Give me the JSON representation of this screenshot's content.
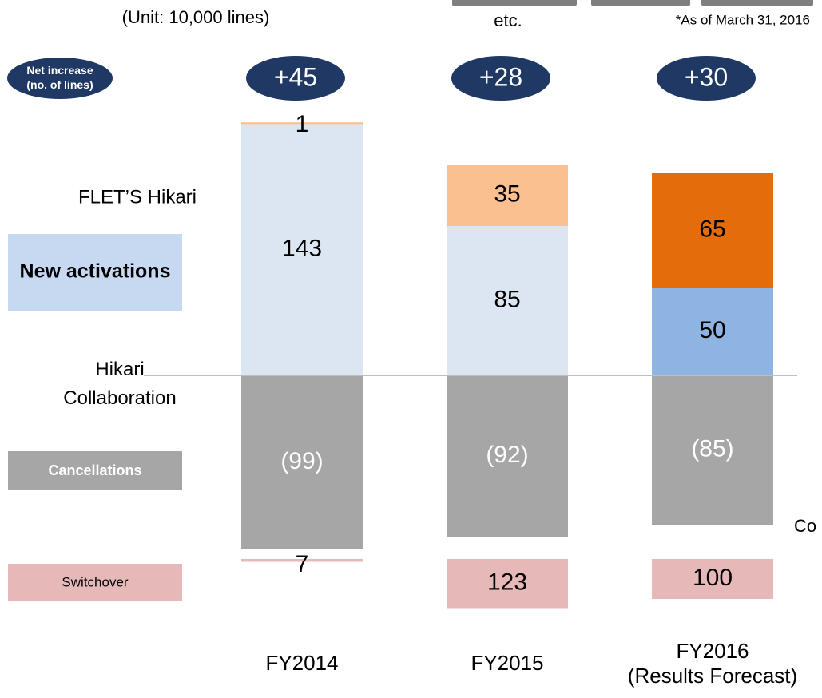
{
  "chart_data": {
    "type": "bar",
    "unit": "(Unit: 10,000 lines)",
    "note": "*As of March 31, 2016",
    "top_text": "etc.",
    "cut_text": "Co",
    "categories": [
      "FY2014",
      "FY2015",
      "FY2016\n(Results Forecast)"
    ],
    "net_increase": {
      "name": "Net increase\n(no. of lines)",
      "color": "#1f3864",
      "values": [
        45,
        28,
        30
      ],
      "value_labels": [
        "+45",
        "+28",
        "+30"
      ]
    },
    "series": [
      {
        "name": "New activations",
        "title": "FLET’S Hikari",
        "colors": [
          "#dce6f2",
          "#dce6f2",
          "#8eb4e3"
        ],
        "legend_color": "#c6d9f1",
        "label_color": "#000000",
        "values": [
          143,
          85,
          50
        ]
      },
      {
        "name": "Hikari\nCollaboration",
        "colors": [
          "#fac090",
          "#fac090",
          "#e46c0a"
        ],
        "label_color": "#000000",
        "values": [
          1,
          35,
          65
        ]
      },
      {
        "name": "Cancellations",
        "colors": [
          "#a6a6a6",
          "#a6a6a6",
          "#a6a6a6"
        ],
        "legend_color": "#a6a6a6",
        "label_color": "#ffffff",
        "values": [
          -99,
          -92,
          -85
        ],
        "value_labels": [
          "(99)",
          "(92)",
          "(85)"
        ]
      }
    ],
    "switchover": {
      "name": "Switchover",
      "color": "#e6b9b8",
      "values": [
        7,
        123,
        100
      ]
    }
  }
}
